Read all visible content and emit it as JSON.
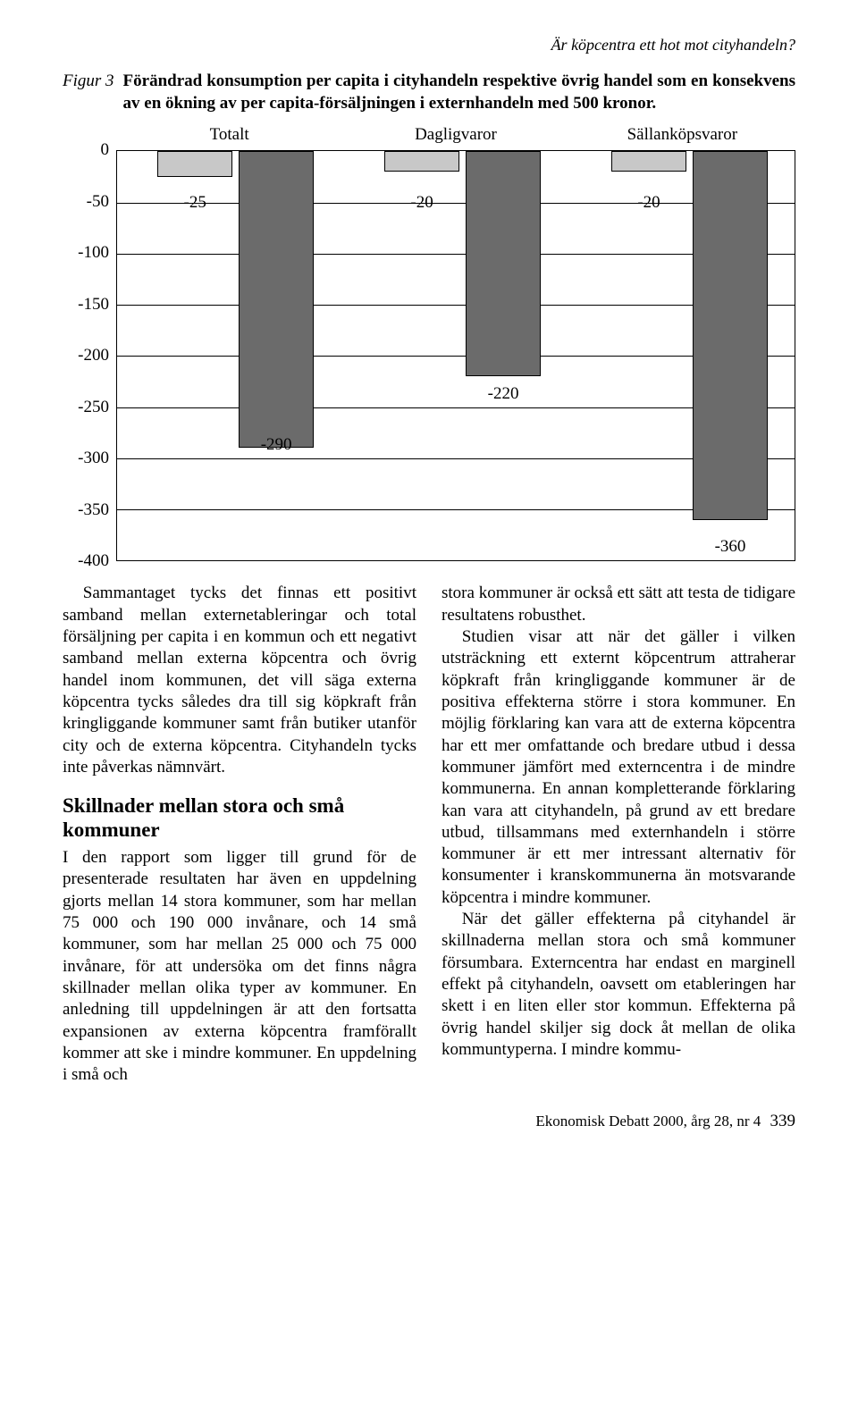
{
  "running_head": "Är köpcentra ett hot mot cityhandeln?",
  "figure": {
    "label": "Figur 3",
    "caption": "Förändrad konsumption per capita i cityhandeln respektive övrig handel som en konsekvens av en ökning av per capita-försäljningen i externhandeln med 500 kronor.",
    "legend": [
      "Totalt",
      "Dagligvaror",
      "Sällanköpsvaror"
    ]
  },
  "chart": {
    "type": "bar",
    "ylim": [
      -400,
      0
    ],
    "ytick_step": 50,
    "yticks": [
      "0",
      "-50",
      "-100",
      "-150",
      "-200",
      "-250",
      "-300",
      "-350",
      "-400"
    ],
    "background_color": "#ffffff",
    "gridline_color": "#000000",
    "colors": {
      "light": "#c8c8c8",
      "dark": "#6b6b6b"
    },
    "groups": [
      {
        "bars": [
          {
            "value": -25,
            "label": "-25",
            "color": "light",
            "x_pct": 6.0,
            "w_pct": 11.0
          },
          {
            "value": -290,
            "label": "-290",
            "color": "dark",
            "x_pct": 18.0,
            "w_pct": 11.0
          }
        ]
      },
      {
        "bars": [
          {
            "value": -20,
            "label": "-20",
            "color": "light",
            "x_pct": 39.5,
            "w_pct": 11.0
          },
          {
            "value": -220,
            "label": "-220",
            "color": "dark",
            "x_pct": 51.5,
            "w_pct": 11.0
          }
        ]
      },
      {
        "bars": [
          {
            "value": -20,
            "label": "-20",
            "color": "light",
            "x_pct": 73.0,
            "w_pct": 11.0
          },
          {
            "value": -360,
            "label": "-360",
            "color": "dark",
            "x_pct": 85.0,
            "w_pct": 11.0
          }
        ]
      }
    ]
  },
  "body": {
    "left": {
      "p1": "Sammantaget tycks det finnas ett positivt samband mellan externetableringar och total försäljning per capita i en kommun och ett negativt samband mellan externa köpcentra och övrig handel inom kommunen, det vill säga externa köpcentra tycks således dra till sig köpkraft från kringliggande kommuner samt från butiker utanför city och de externa köpcentra. Cityhandeln tycks inte påverkas nämnvärt.",
      "h2": "Skillnader mellan stora och små kommuner",
      "p2": "I den rapport som ligger till grund för de presenterade resultaten har även en uppdelning gjorts mellan 14 stora kommuner, som har mellan 75 000 och 190 000 invånare, och 14 små kommuner, som har mellan 25 000 och 75 000 invånare, för att undersöka om det finns några skillnader mellan olika typer av kommuner. En anledning till uppdelningen är att den fortsatta expansionen av externa köpcentra framförallt kommer att ske i mindre kommuner. En uppdelning i små och"
    },
    "right": {
      "p1": "stora kommuner är också ett sätt att testa de tidigare resultatens robusthet.",
      "p2": "Studien visar att när det gäller i vilken utsträckning ett externt köpcentrum attraherar köpkraft från kringliggande kommuner är de positiva effekterna större i stora kommuner. En möjlig förklaring kan vara att de externa köpcentra har ett mer omfattande och bredare utbud i dessa kommuner jämfört med externcentra i de mindre kommunerna. En annan kompletterande förklaring kan vara att cityhandeln, på grund av ett bredare utbud, tillsammans med externhandeln i större kommuner är ett mer intressant alternativ för konsumenter i kranskommunerna än motsvarande köpcentra i mindre kommuner.",
      "p3": "När det gäller effekterna på cityhandel är skillnaderna mellan stora och små kommuner försumbara. Externcentra har endast en marginell effekt på cityhandeln, oavsett om etableringen har skett i en liten eller stor kommun. Effekterna på övrig handel skiljer sig dock åt mellan de olika kommuntyperna. I mindre kommu-"
    }
  },
  "footer": {
    "journal": "Ekonomisk Debatt 2000, årg 28, nr 4",
    "page": "339"
  }
}
